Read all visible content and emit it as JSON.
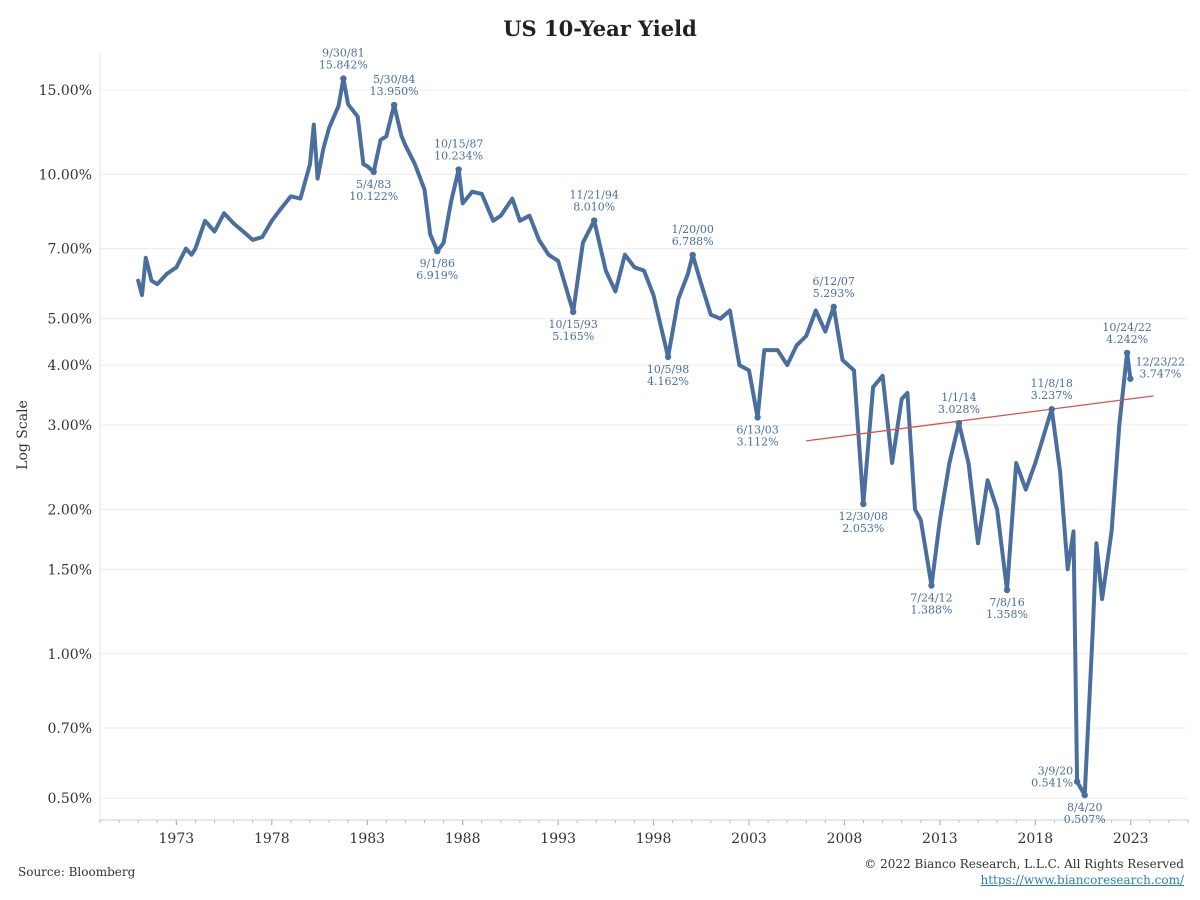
{
  "chart_data": {
    "type": "line",
    "title": "US 10-Year Yield",
    "ylabel": "Log Scale",
    "xlabel": "",
    "y_scale": "log",
    "ylim": [
      0.45,
      18
    ],
    "xlim": [
      1969.0,
      2026.0
    ],
    "grid": true,
    "y_ticks": [
      0.5,
      0.7,
      1.0,
      1.5,
      2.0,
      3.0,
      4.0,
      5.0,
      7.0,
      10.0,
      15.0
    ],
    "y_tick_labels": [
      "0.50%",
      "0.70%",
      "1.00%",
      "1.50%",
      "2.00%",
      "3.00%",
      "4.00%",
      "5.00%",
      "7.00%",
      "10.00%",
      "15.00%"
    ],
    "x_ticks": [
      1973,
      1978,
      1983,
      1988,
      1993,
      1998,
      2003,
      2008,
      2013,
      2018,
      2023
    ],
    "x_tick_labels": [
      "1973",
      "1978",
      "1983",
      "1988",
      "1993",
      "1998",
      "2003",
      "2008",
      "2013",
      "2018",
      "2023"
    ],
    "series": [
      {
        "color": "#4a6f9e",
        "points": [
          [
            1971.0,
            6.0
          ],
          [
            1971.2,
            5.6
          ],
          [
            1971.4,
            6.7
          ],
          [
            1971.7,
            6.0
          ],
          [
            1972.0,
            5.9
          ],
          [
            1972.5,
            6.2
          ],
          [
            1973.0,
            6.4
          ],
          [
            1973.5,
            7.0
          ],
          [
            1973.8,
            6.8
          ],
          [
            1974.0,
            7.0
          ],
          [
            1974.5,
            8.0
          ],
          [
            1975.0,
            7.6
          ],
          [
            1975.5,
            8.3
          ],
          [
            1976.0,
            7.9
          ],
          [
            1976.5,
            7.6
          ],
          [
            1977.0,
            7.3
          ],
          [
            1977.5,
            7.4
          ],
          [
            1978.0,
            8.0
          ],
          [
            1978.5,
            8.5
          ],
          [
            1979.0,
            9.0
          ],
          [
            1979.5,
            8.9
          ],
          [
            1980.0,
            10.5
          ],
          [
            1980.2,
            12.7
          ],
          [
            1980.4,
            9.8
          ],
          [
            1980.7,
            11.3
          ],
          [
            1981.0,
            12.5
          ],
          [
            1981.5,
            13.9
          ],
          [
            1981.75,
            15.842
          ],
          [
            1982.0,
            14.0
          ],
          [
            1982.5,
            13.2
          ],
          [
            1982.8,
            10.5
          ],
          [
            1983.0,
            10.4
          ],
          [
            1983.34,
            10.122
          ],
          [
            1983.7,
            11.8
          ],
          [
            1984.0,
            12.0
          ],
          [
            1984.41,
            13.95
          ],
          [
            1984.8,
            12.0
          ],
          [
            1985.0,
            11.5
          ],
          [
            1985.5,
            10.5
          ],
          [
            1986.0,
            9.3
          ],
          [
            1986.3,
            7.5
          ],
          [
            1986.67,
            6.919
          ],
          [
            1987.0,
            7.2
          ],
          [
            1987.4,
            8.8
          ],
          [
            1987.79,
            10.234
          ],
          [
            1988.0,
            8.7
          ],
          [
            1988.5,
            9.2
          ],
          [
            1989.0,
            9.1
          ],
          [
            1989.6,
            8.0
          ],
          [
            1990.0,
            8.2
          ],
          [
            1990.6,
            8.9
          ],
          [
            1991.0,
            8.0
          ],
          [
            1991.5,
            8.2
          ],
          [
            1992.0,
            7.3
          ],
          [
            1992.5,
            6.8
          ],
          [
            1993.0,
            6.6
          ],
          [
            1993.79,
            5.165
          ],
          [
            1994.3,
            7.2
          ],
          [
            1994.89,
            8.01
          ],
          [
            1995.5,
            6.3
          ],
          [
            1996.0,
            5.7
          ],
          [
            1996.5,
            6.8
          ],
          [
            1997.0,
            6.4
          ],
          [
            1997.5,
            6.3
          ],
          [
            1998.0,
            5.6
          ],
          [
            1998.76,
            4.162
          ],
          [
            1999.3,
            5.5
          ],
          [
            1999.8,
            6.2
          ],
          [
            2000.05,
            6.788
          ],
          [
            2000.5,
            5.9
          ],
          [
            2001.0,
            5.1
          ],
          [
            2001.5,
            5.0
          ],
          [
            2002.0,
            5.2
          ],
          [
            2002.5,
            4.0
          ],
          [
            2003.0,
            3.9
          ],
          [
            2003.45,
            3.112
          ],
          [
            2003.8,
            4.3
          ],
          [
            2004.5,
            4.3
          ],
          [
            2005.0,
            4.0
          ],
          [
            2005.5,
            4.4
          ],
          [
            2006.0,
            4.6
          ],
          [
            2006.5,
            5.2
          ],
          [
            2007.0,
            4.7
          ],
          [
            2007.44,
            5.293
          ],
          [
            2007.9,
            4.1
          ],
          [
            2008.5,
            3.9
          ],
          [
            2008.99,
            2.053
          ],
          [
            2009.5,
            3.6
          ],
          [
            2010.0,
            3.8
          ],
          [
            2010.5,
            2.5
          ],
          [
            2011.0,
            3.4
          ],
          [
            2011.3,
            3.5
          ],
          [
            2011.7,
            2.0
          ],
          [
            2012.0,
            1.9
          ],
          [
            2012.56,
            1.388
          ],
          [
            2013.0,
            1.9
          ],
          [
            2013.5,
            2.5
          ],
          [
            2014.0,
            3.028
          ],
          [
            2014.5,
            2.5
          ],
          [
            2015.0,
            1.7
          ],
          [
            2015.5,
            2.3
          ],
          [
            2016.0,
            2.0
          ],
          [
            2016.52,
            1.358
          ],
          [
            2017.0,
            2.5
          ],
          [
            2017.5,
            2.2
          ],
          [
            2018.0,
            2.5
          ],
          [
            2018.86,
            3.237
          ],
          [
            2019.3,
            2.4
          ],
          [
            2019.7,
            1.5
          ],
          [
            2020.0,
            1.8
          ],
          [
            2020.19,
            0.541
          ],
          [
            2020.59,
            0.507
          ],
          [
            2021.0,
            1.1
          ],
          [
            2021.2,
            1.7
          ],
          [
            2021.5,
            1.3
          ],
          [
            2022.0,
            1.8
          ],
          [
            2022.4,
            3.0
          ],
          [
            2022.81,
            4.242
          ],
          [
            2022.98,
            3.747
          ]
        ]
      },
      {
        "name": "",
        "kind": "trendline",
        "color": "#d9534f",
        "points": [
          [
            2006.0,
            2.78
          ],
          [
            2024.2,
            3.45
          ]
        ]
      }
    ],
    "annotations": [
      {
        "date": "9/30/81",
        "value": "15.842%",
        "x": 1981.75,
        "y": 15.842,
        "pos": "above"
      },
      {
        "date": "5/4/83",
        "value": "10.122%",
        "x": 1983.34,
        "y": 10.122,
        "pos": "below"
      },
      {
        "date": "5/30/84",
        "value": "13.950%",
        "x": 1984.41,
        "y": 13.95,
        "pos": "above"
      },
      {
        "date": "9/1/86",
        "value": "6.919%",
        "x": 1986.67,
        "y": 6.919,
        "pos": "below"
      },
      {
        "date": "10/15/87",
        "value": "10.234%",
        "x": 1987.79,
        "y": 10.234,
        "pos": "above"
      },
      {
        "date": "10/15/93",
        "value": "5.165%",
        "x": 1993.79,
        "y": 5.165,
        "pos": "below"
      },
      {
        "date": "11/21/94",
        "value": "8.010%",
        "x": 1994.89,
        "y": 8.01,
        "pos": "above"
      },
      {
        "date": "10/5/98",
        "value": "4.162%",
        "x": 1998.76,
        "y": 4.162,
        "pos": "below"
      },
      {
        "date": "1/20/00",
        "value": "6.788%",
        "x": 2000.05,
        "y": 6.788,
        "pos": "above"
      },
      {
        "date": "6/13/03",
        "value": "3.112%",
        "x": 2003.45,
        "y": 3.112,
        "pos": "below"
      },
      {
        "date": "6/12/07",
        "value": "5.293%",
        "x": 2007.44,
        "y": 5.293,
        "pos": "above"
      },
      {
        "date": "12/30/08",
        "value": "2.053%",
        "x": 2008.99,
        "y": 2.053,
        "pos": "below"
      },
      {
        "date": "7/24/12",
        "value": "1.388%",
        "x": 2012.56,
        "y": 1.388,
        "pos": "below"
      },
      {
        "date": "1/1/14",
        "value": "3.028%",
        "x": 2014.0,
        "y": 3.028,
        "pos": "above"
      },
      {
        "date": "7/8/16",
        "value": "1.358%",
        "x": 2016.52,
        "y": 1.358,
        "pos": "below"
      },
      {
        "date": "11/8/18",
        "value": "3.237%",
        "x": 2018.86,
        "y": 3.237,
        "pos": "above"
      },
      {
        "date": "3/9/20",
        "value": "0.541%",
        "x": 2020.19,
        "y": 0.541,
        "pos": "left"
      },
      {
        "date": "8/4/20",
        "value": "0.507%",
        "x": 2020.59,
        "y": 0.507,
        "pos": "below"
      },
      {
        "date": "10/24/22",
        "value": "4.242%",
        "x": 2022.81,
        "y": 4.242,
        "pos": "above"
      },
      {
        "date": "12/23/22",
        "value": "3.747%",
        "x": 2022.98,
        "y": 3.747,
        "pos": "right"
      }
    ]
  },
  "footer": {
    "source": "Source: Bloomberg",
    "copyright": "© 2022 Bianco Research, L.L.C. All Rights Reserved",
    "url": "https://www.biancoresearch.com/"
  }
}
